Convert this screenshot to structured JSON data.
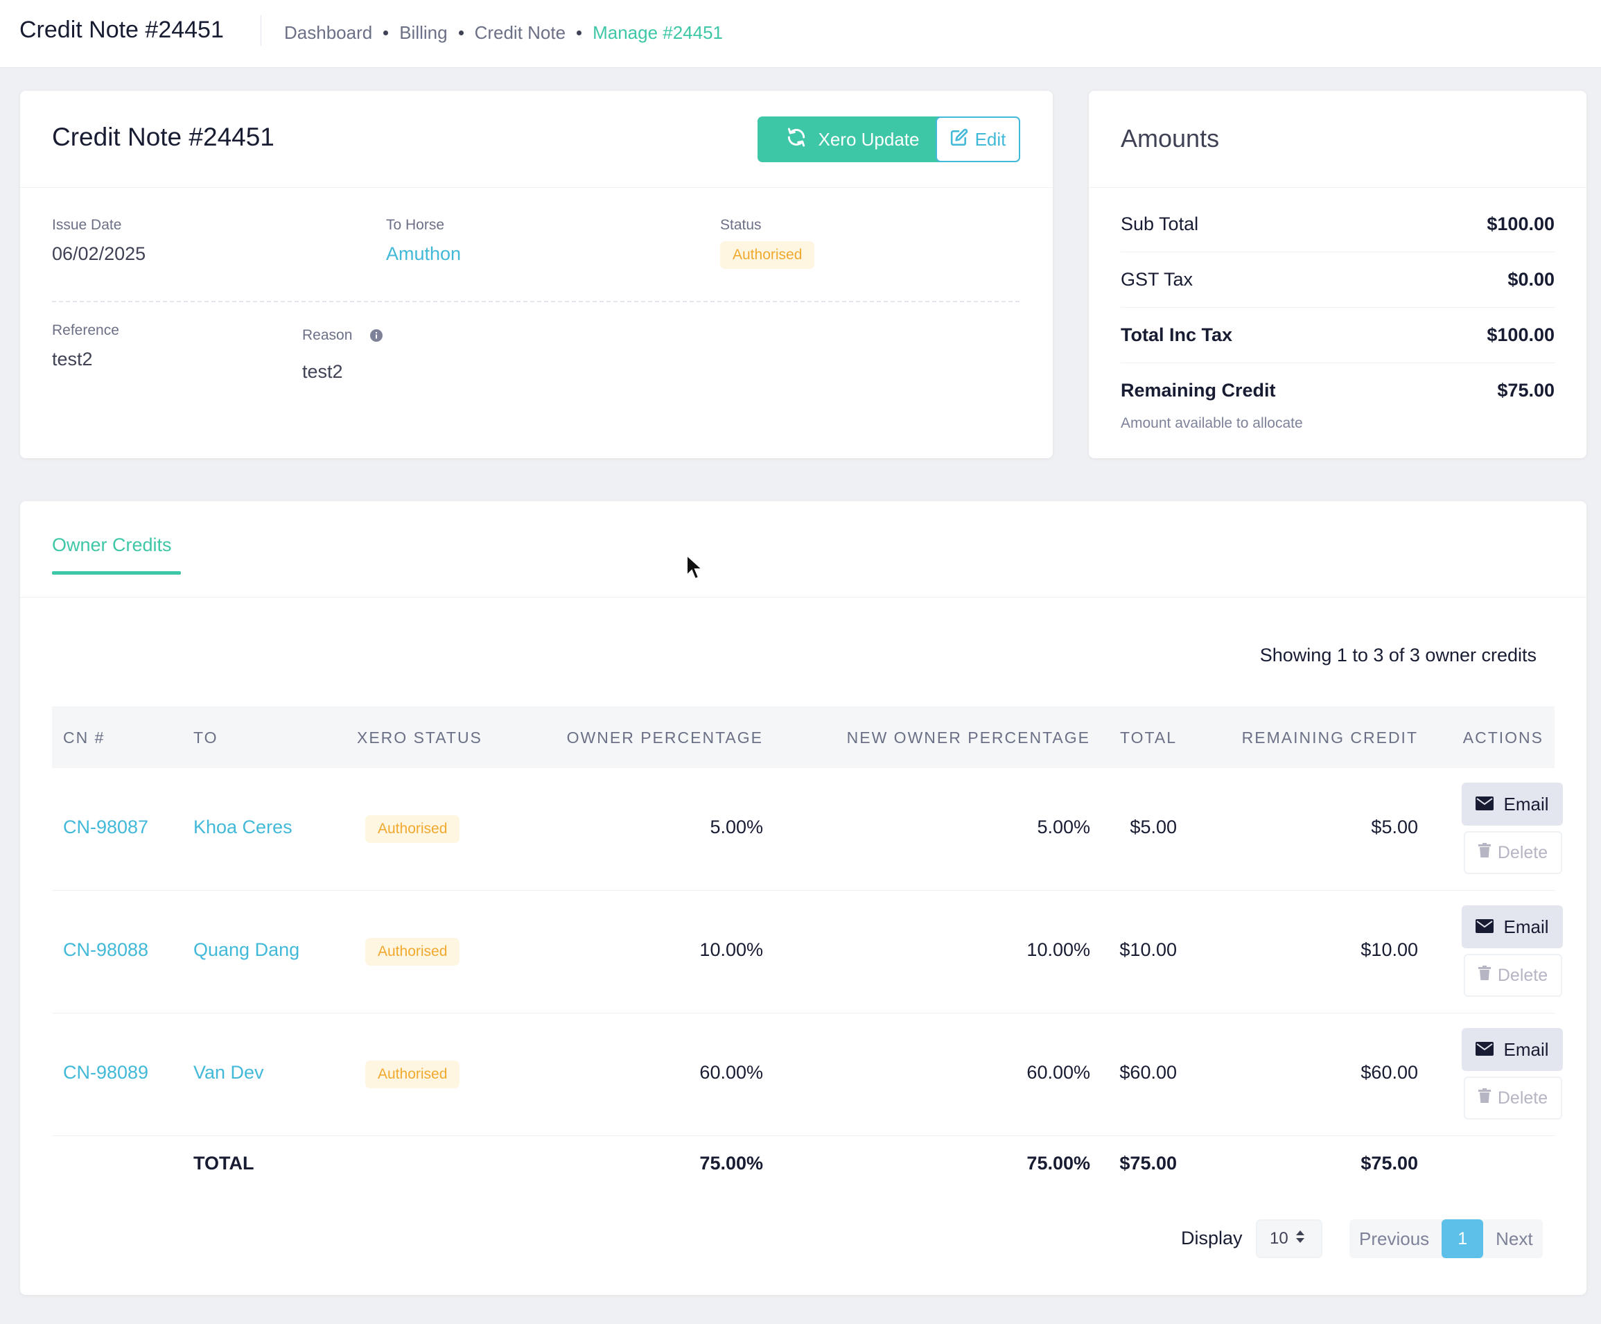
{
  "header": {
    "title": "Credit Note #24451",
    "breadcrumb": [
      "Dashboard",
      "Billing",
      "Credit Note"
    ],
    "breadcrumb_active": "Manage #24451"
  },
  "credit_note": {
    "title": "Credit Note #24451",
    "xero_update_label": "Xero Update",
    "edit_label": "Edit",
    "issue_date_label": "Issue Date",
    "issue_date": "06/02/2025",
    "to_horse_label": "To Horse",
    "to_horse": "Amuthon",
    "status_label": "Status",
    "status": "Authorised",
    "reference_label": "Reference",
    "reference": "test2",
    "reason_label": "Reason",
    "reason": "test2"
  },
  "amounts": {
    "title": "Amounts",
    "rows": [
      {
        "label": "Sub Total",
        "value": "$100.00"
      },
      {
        "label": "GST Tax",
        "value": "$0.00"
      },
      {
        "label": "Total Inc Tax",
        "value": "$100.00"
      },
      {
        "label": "Remaining Credit",
        "value": "$75.00"
      }
    ],
    "note": "Amount available to allocate"
  },
  "owner_credits": {
    "tab_label": "Owner Credits",
    "showing": "Showing 1 to 3 of 3 owner credits",
    "columns": [
      "CN #",
      "TO",
      "XERO STATUS",
      "OWNER PERCENTAGE",
      "NEW OWNER PERCENTAGE",
      "TOTAL",
      "REMAINING CREDIT",
      "ACTIONS"
    ],
    "rows": [
      {
        "cn": "CN-98087",
        "to": "Khoa Ceres",
        "status": "Authorised",
        "owner_pct": "5.00%",
        "new_owner_pct": "5.00%",
        "total": "$5.00",
        "remaining": "$5.00"
      },
      {
        "cn": "CN-98088",
        "to": "Quang Dang",
        "status": "Authorised",
        "owner_pct": "10.00%",
        "new_owner_pct": "10.00%",
        "total": "$10.00",
        "remaining": "$10.00"
      },
      {
        "cn": "CN-98089",
        "to": "Van Dev",
        "status": "Authorised",
        "owner_pct": "60.00%",
        "new_owner_pct": "60.00%",
        "total": "$60.00",
        "remaining": "$60.00"
      }
    ],
    "email_label": "Email",
    "delete_label": "Delete",
    "totals": {
      "label": "TOTAL",
      "owner_pct": "75.00%",
      "new_owner_pct": "75.00%",
      "total": "$75.00",
      "remaining": "$75.00"
    },
    "display_label": "Display",
    "display_value": "10",
    "pagination": {
      "previous": "Previous",
      "current": "1",
      "next": "Next"
    }
  },
  "colors": {
    "accent": "#3ec7a6",
    "link": "#42b9d8",
    "badge_bg": "#fff6e2",
    "badge_text": "#f0a92e"
  }
}
